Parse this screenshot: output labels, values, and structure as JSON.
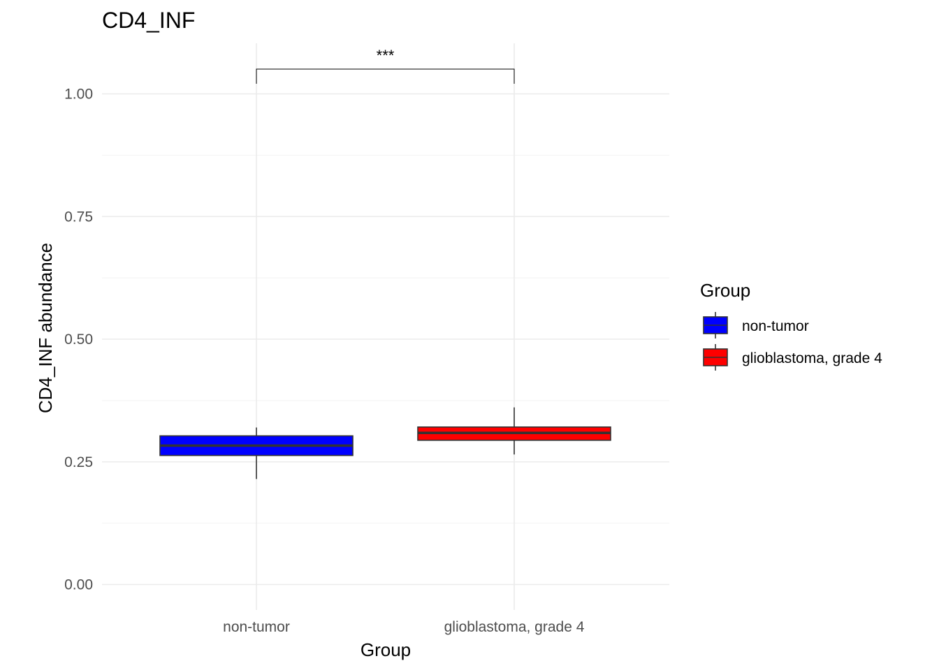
{
  "chart_data": {
    "type": "box",
    "title": "CD4_INF",
    "xlabel": "Group",
    "ylabel": "CD4_INF abundance",
    "ylim": [
      -0.05,
      1.1
    ],
    "y_ticks": [
      0.0,
      0.25,
      0.5,
      0.75,
      1.0
    ],
    "y_tick_labels": [
      "0.00",
      "0.25",
      "0.50",
      "0.75",
      "1.00"
    ],
    "categories": [
      "non-tumor",
      "glioblastoma, grade 4"
    ],
    "grid": true,
    "legend": {
      "title": "Group",
      "position": "right",
      "entries": [
        {
          "label": "non-tumor",
          "color": "#0000ff"
        },
        {
          "label": "glioblastoma, grade 4",
          "color": "#ff0000"
        }
      ]
    },
    "series": [
      {
        "name": "non-tumor",
        "color": "#0000ff",
        "min": 0.215,
        "q1": 0.263,
        "median": 0.283,
        "q3": 0.303,
        "max": 0.32
      },
      {
        "name": "glioblastoma, grade 4",
        "color": "#ff0000",
        "min": 0.265,
        "q1": 0.294,
        "median": 0.309,
        "q3": 0.321,
        "max": 0.361
      }
    ],
    "annotations": [
      {
        "type": "significance",
        "from": "non-tumor",
        "to": "glioblastoma, grade 4",
        "label": "***"
      }
    ]
  }
}
